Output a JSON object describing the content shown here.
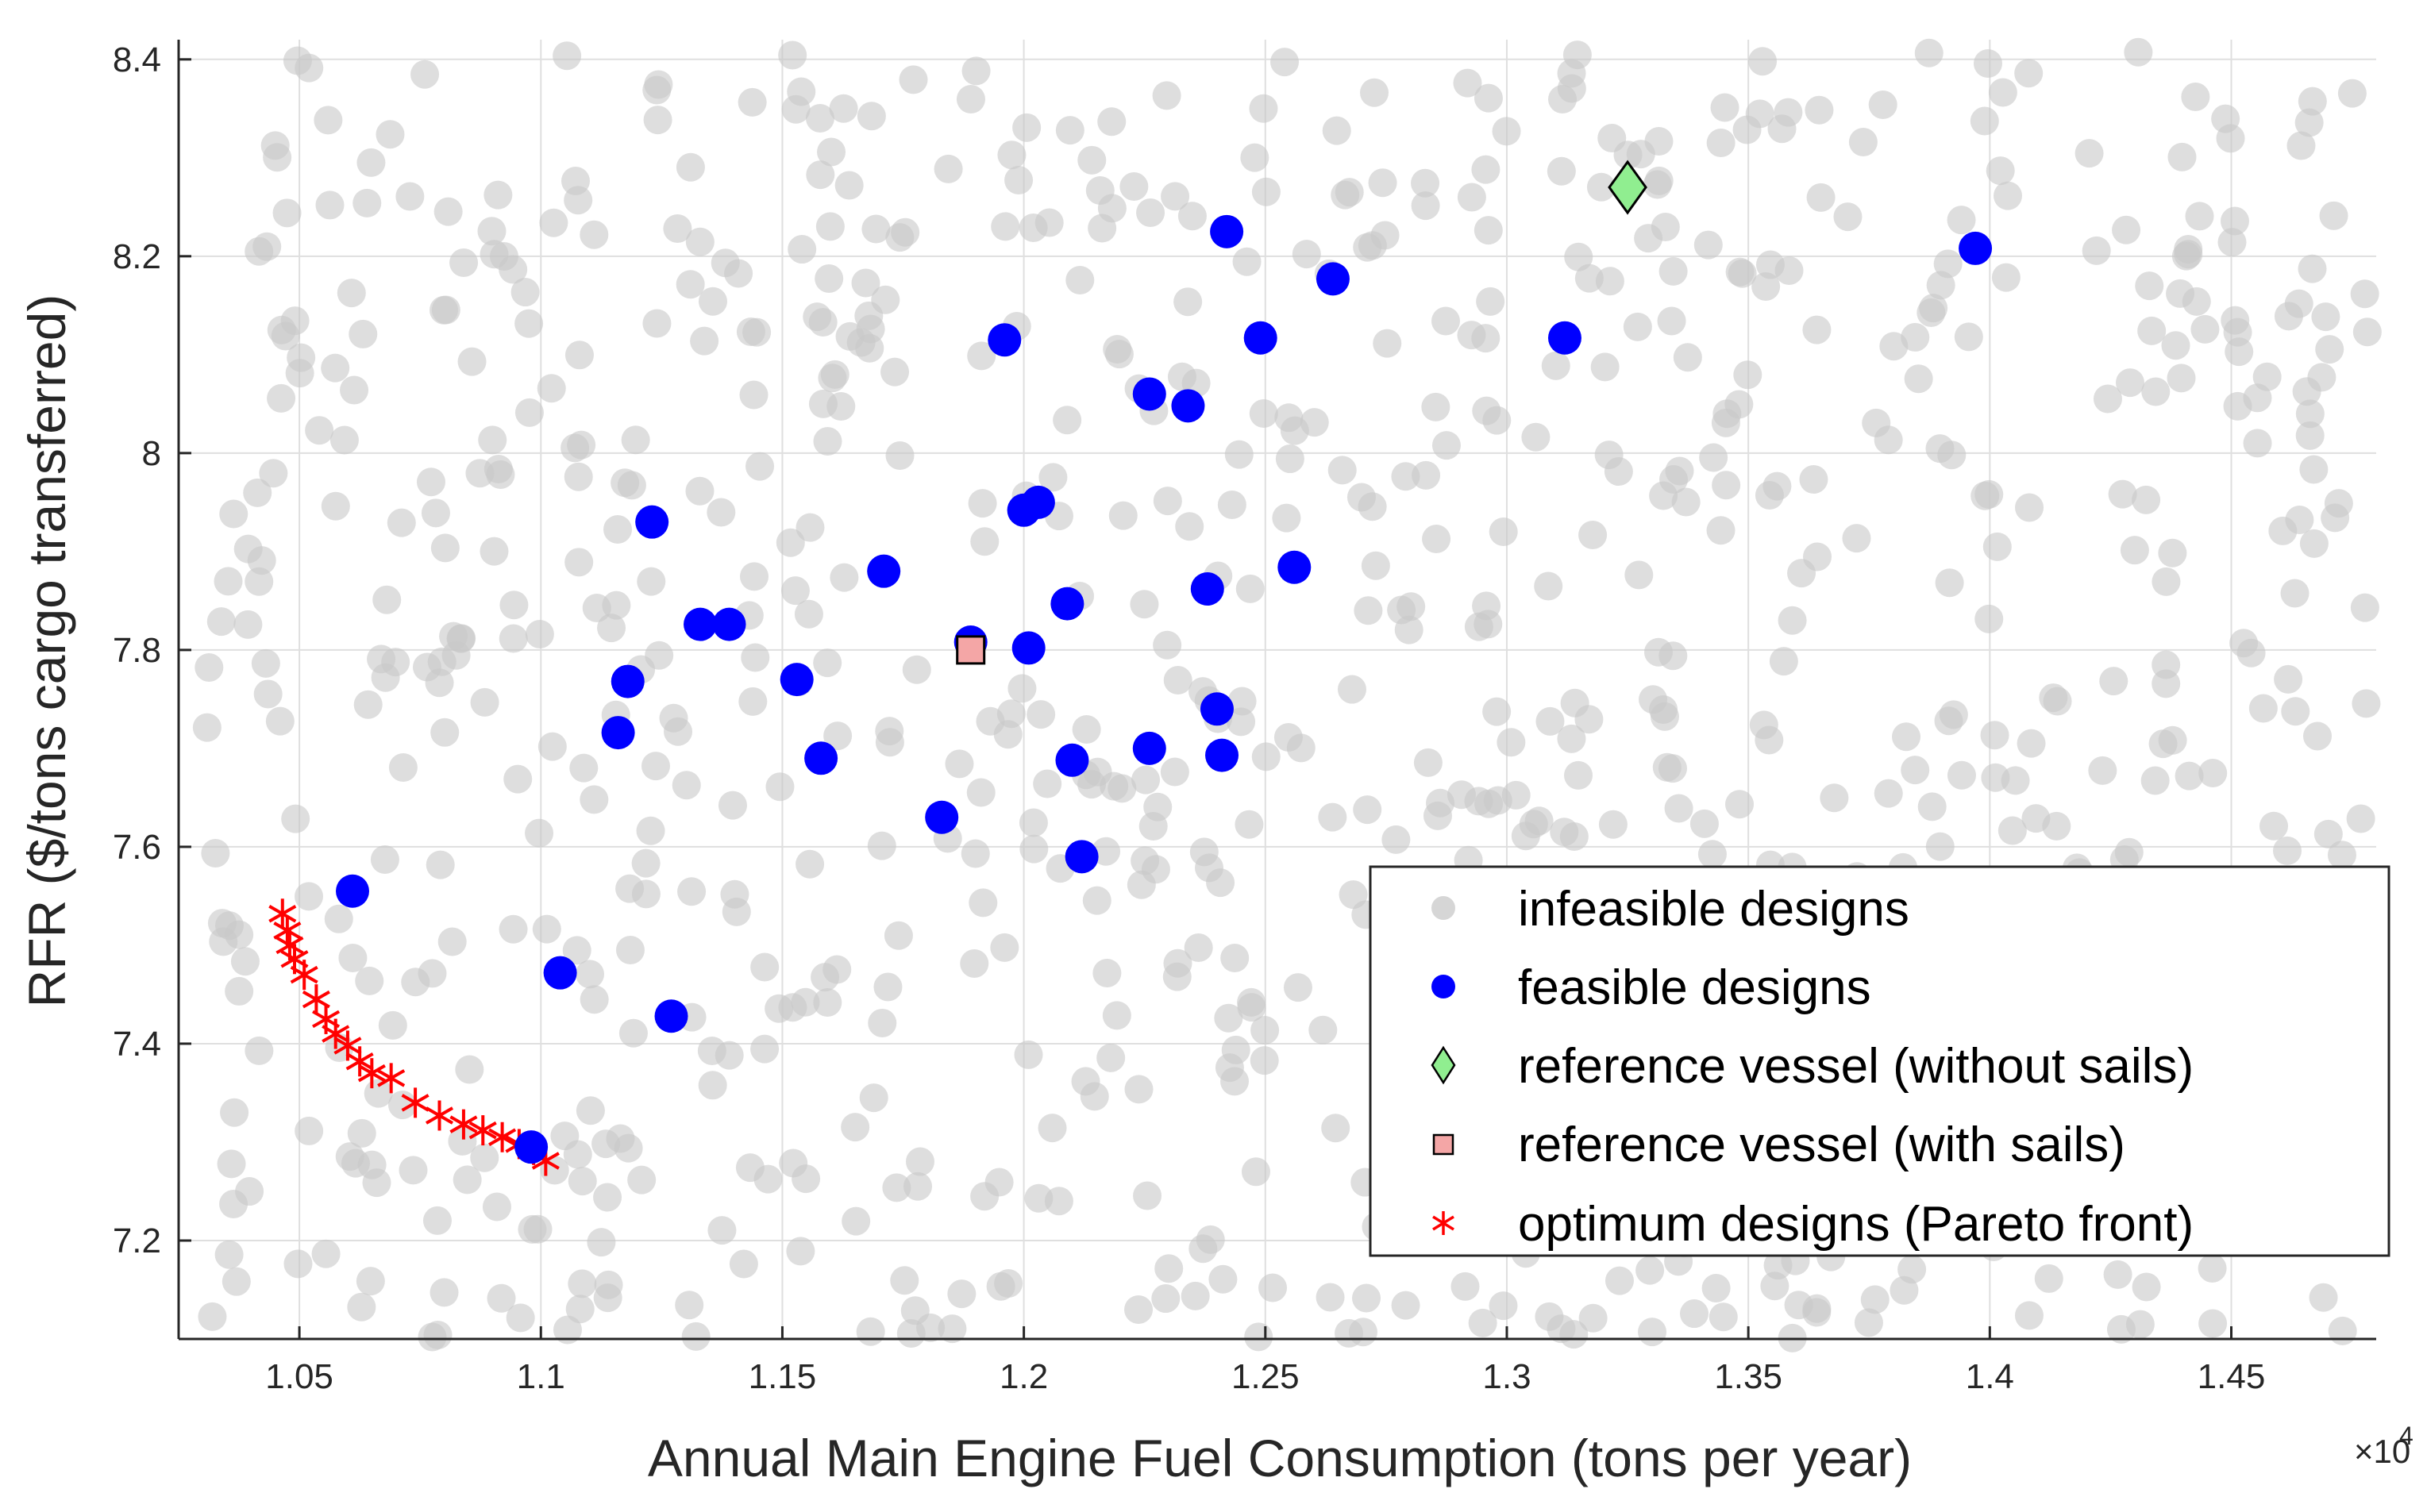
{
  "chart_data": {
    "type": "scatter",
    "title": "",
    "xlabel": "Annual Main Engine Fuel Consumption (tons per year)",
    "ylabel": "RFR ($/tons cargo transferred)",
    "x_exponent_label": "×10",
    "x_exponent_power": "4",
    "xlim": [
      1.025,
      1.48
    ],
    "ylim": [
      7.1,
      8.42
    ],
    "x_ticks": [
      1.05,
      1.1,
      1.15,
      1.2,
      1.25,
      1.3,
      1.35,
      1.4,
      1.45
    ],
    "x_tick_labels": [
      "1.05",
      "1.1",
      "1.15",
      "1.2",
      "1.25",
      "1.3",
      "1.35",
      "1.4",
      "1.45"
    ],
    "y_ticks": [
      7.2,
      7.4,
      7.6,
      7.8,
      8.0,
      8.2,
      8.4
    ],
    "y_tick_labels": [
      "7.2",
      "7.4",
      "7.6",
      "7.8",
      "8",
      "8.2",
      "8.4"
    ],
    "grid": true,
    "legend_position": "bottom-right",
    "legend": [
      "infeasible designs",
      "feasible designs",
      "reference vessel (without sails)",
      "reference vessel (with sails)",
      "optimum designs (Pareto front)"
    ],
    "series": [
      {
        "name": "infeasible designs",
        "marker": "circle",
        "color": "#c8c8c8",
        "generated": true,
        "count": 900,
        "x_range": [
          1.03,
          1.48
        ],
        "y_range": [
          7.1,
          8.41
        ],
        "note": "dense uniform cloud of infeasible design samples"
      },
      {
        "name": "feasible designs",
        "marker": "circle",
        "color": "#0000ff",
        "points": [
          [
            1.061,
            7.555
          ],
          [
            1.104,
            7.472
          ],
          [
            1.098,
            7.295
          ],
          [
            1.127,
            7.428
          ],
          [
            1.116,
            7.716
          ],
          [
            1.118,
            7.768
          ],
          [
            1.123,
            7.93
          ],
          [
            1.133,
            7.826
          ],
          [
            1.139,
            7.826
          ],
          [
            1.153,
            7.77
          ],
          [
            1.158,
            7.69
          ],
          [
            1.171,
            7.88
          ],
          [
            1.183,
            7.63
          ],
          [
            1.189,
            7.808
          ],
          [
            1.196,
            8.115
          ],
          [
            1.2,
            7.942
          ],
          [
            1.203,
            7.95
          ],
          [
            1.201,
            7.802
          ],
          [
            1.209,
            7.847
          ],
          [
            1.21,
            7.688
          ],
          [
            1.212,
            7.59
          ],
          [
            1.226,
            7.7
          ],
          [
            1.226,
            8.06
          ],
          [
            1.234,
            8.048
          ],
          [
            1.238,
            7.862
          ],
          [
            1.24,
            7.74
          ],
          [
            1.241,
            7.693
          ],
          [
            1.242,
            8.225
          ],
          [
            1.249,
            8.117
          ],
          [
            1.256,
            7.884
          ],
          [
            1.264,
            8.177
          ],
          [
            1.312,
            8.117
          ],
          [
            1.397,
            8.208
          ]
        ]
      },
      {
        "name": "reference vessel (without sails)",
        "marker": "diamond",
        "color": "#90ee90",
        "points": [
          [
            1.325,
            8.27
          ]
        ]
      },
      {
        "name": "reference vessel (with sails)",
        "marker": "square",
        "color": "#f4a6a6",
        "points": [
          [
            1.189,
            7.8
          ]
        ]
      },
      {
        "name": "optimum designs (Pareto front)",
        "marker": "asterisk",
        "color": "#ff0000",
        "points": [
          [
            1.0465,
            7.532
          ],
          [
            1.0475,
            7.515
          ],
          [
            1.048,
            7.5
          ],
          [
            1.049,
            7.486
          ],
          [
            1.051,
            7.47
          ],
          [
            1.0535,
            7.445
          ],
          [
            1.0555,
            7.425
          ],
          [
            1.0575,
            7.41
          ],
          [
            1.06,
            7.398
          ],
          [
            1.0625,
            7.382
          ],
          [
            1.065,
            7.37
          ],
          [
            1.069,
            7.365
          ],
          [
            1.074,
            7.34
          ],
          [
            1.079,
            7.327
          ],
          [
            1.084,
            7.318
          ],
          [
            1.088,
            7.312
          ],
          [
            1.092,
            7.305
          ],
          [
            1.0955,
            7.298
          ],
          [
            1.0985,
            7.292
          ],
          [
            1.101,
            7.281
          ]
        ]
      }
    ]
  }
}
